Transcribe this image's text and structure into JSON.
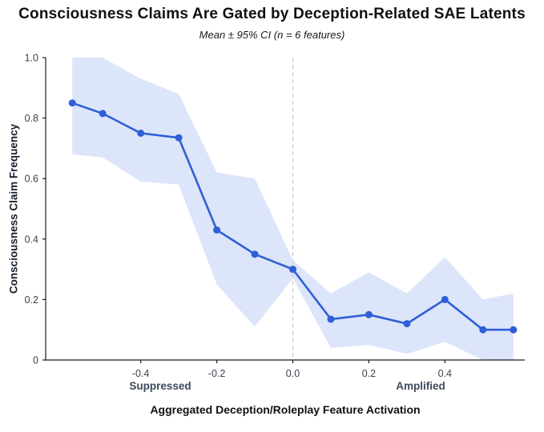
{
  "chart_data": {
    "type": "line",
    "title": "Consciousness Claims Are Gated by Deception-Related SAE Latents",
    "subtitle": "Mean ± 95% CI (n = 6 features)",
    "xlabel": "Aggregated Deception/Roleplay Feature Activation",
    "ylabel": "Consciousness Claim Frequency",
    "x_annotations": [
      {
        "label": "Suppressed",
        "x": -0.33
      },
      {
        "label": "Amplified",
        "x": 0.36
      }
    ],
    "x": [
      -0.58,
      -0.5,
      -0.4,
      -0.3,
      -0.2,
      -0.1,
      0.0,
      0.1,
      0.2,
      0.3,
      0.4,
      0.5,
      0.58
    ],
    "series": [
      {
        "name": "Mean consciousness claim frequency",
        "values": [
          0.85,
          0.815,
          0.75,
          0.735,
          0.43,
          0.35,
          0.3,
          0.135,
          0.15,
          0.12,
          0.2,
          0.1,
          0.1
        ]
      }
    ],
    "ci_upper": [
      1.0,
      1.0,
      0.93,
      0.88,
      0.62,
      0.6,
      0.33,
      0.22,
      0.29,
      0.22,
      0.34,
      0.2,
      0.22
    ],
    "ci_lower": [
      0.68,
      0.67,
      0.59,
      0.58,
      0.25,
      0.11,
      0.27,
      0.04,
      0.05,
      0.02,
      0.06,
      0.0,
      0.0
    ],
    "x_ticks": [
      -0.4,
      -0.2,
      0.0,
      0.2,
      0.4
    ],
    "x_tick_labels": [
      "-0.4",
      "-0.2",
      "0.0",
      "0.2",
      "0.4"
    ],
    "y_ticks": [
      0,
      0.2,
      0.4,
      0.6,
      0.8,
      1.0
    ],
    "y_tick_labels": [
      "0",
      "0.2",
      "0.4",
      "0.6",
      "0.8",
      "1.0"
    ],
    "xlim": [
      -0.65,
      0.61
    ],
    "ylim": [
      0,
      1.0
    ],
    "vline_x": 0.0,
    "grid": false,
    "legend": "none",
    "colors": {
      "line": "#2e5fd7",
      "band": "#dce5f9",
      "vline": "#cccccc",
      "axis": "#1c1c1c",
      "tick_text": "#3a4250"
    }
  }
}
